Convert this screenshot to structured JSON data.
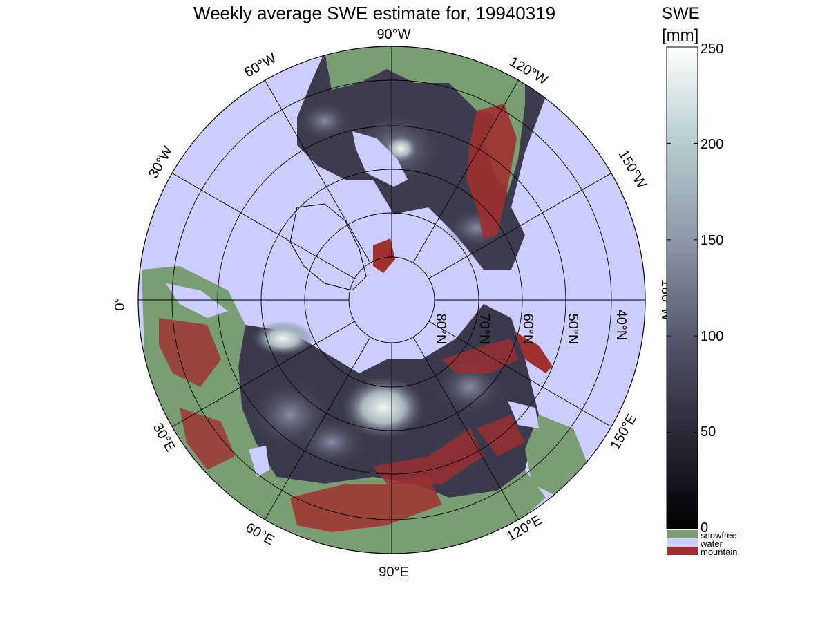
{
  "title": "Weekly average SWE estimate for, 19940319",
  "colorbar": {
    "title_line1": "SWE",
    "title_line2": "[mm]",
    "ticks": [
      "250",
      "200",
      "150",
      "100",
      "50",
      "0"
    ],
    "tick_values": [
      250,
      200,
      150,
      100,
      50,
      0
    ],
    "range": [
      0,
      250
    ],
    "colors": {
      "low": "#000000",
      "mid": "#7e7e98",
      "high": "#ffffff"
    }
  },
  "legend": [
    {
      "label": "snowfree",
      "color": "#7a9e74"
    },
    {
      "label": "water",
      "color": "#ccccff"
    },
    {
      "label": "mountain",
      "color": "#a03030"
    }
  ],
  "map": {
    "projection": "north-polar-stereographic",
    "longitude_labels": [
      "90°W",
      "120°W",
      "150°W",
      "180°W",
      "150°E",
      "120°E",
      "90°E",
      "60°E",
      "30°E",
      "0°",
      "30°W",
      "60°W"
    ],
    "latitude_labels": [
      "80°N",
      "70°N",
      "60°N",
      "50°N",
      "40°N"
    ],
    "colors": {
      "water": "#ccccff",
      "snowfree": "#7a9e74",
      "mountain": "#a03030",
      "snow_low": "#2a2a38",
      "snow_high": "#e8f0ee"
    }
  }
}
